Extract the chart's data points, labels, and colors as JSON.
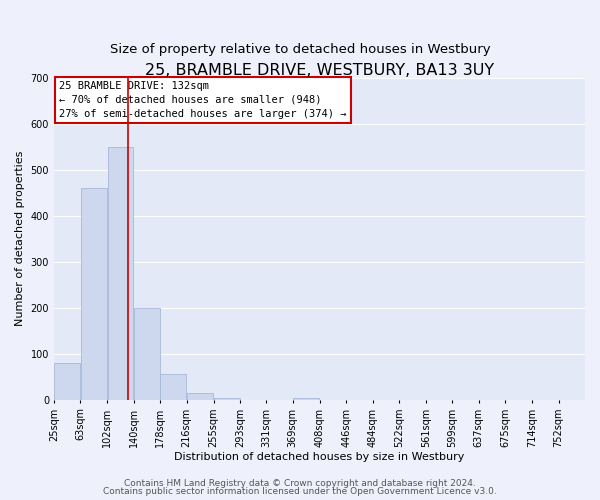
{
  "title": "25, BRAMBLE DRIVE, WESTBURY, BA13 3UY",
  "subtitle": "Size of property relative to detached houses in Westbury",
  "xlabel": "Distribution of detached houses by size in Westbury",
  "ylabel": "Number of detached properties",
  "bar_edges": [
    25,
    63,
    102,
    140,
    178,
    216,
    255,
    293,
    331,
    369,
    408,
    446,
    484,
    522,
    561,
    599,
    637,
    675,
    714,
    752,
    790
  ],
  "bar_heights": [
    80,
    460,
    550,
    200,
    57,
    15,
    3,
    0,
    0,
    5,
    0,
    0,
    0,
    0,
    0,
    0,
    0,
    0,
    0,
    0
  ],
  "bar_color": "#cdd8ee",
  "bar_edge_color": "#a8b8d8",
  "property_line_x": 132,
  "property_line_color": "#cc0000",
  "ylim": [
    0,
    700
  ],
  "yticks": [
    0,
    100,
    200,
    300,
    400,
    500,
    600,
    700
  ],
  "annotation_text_line1": "25 BRAMBLE DRIVE: 132sqm",
  "annotation_text_line2": "← 70% of detached houses are smaller (948)",
  "annotation_text_line3": "27% of semi-detached houses are larger (374) →",
  "footer_line1": "Contains HM Land Registry data © Crown copyright and database right 2024.",
  "footer_line2": "Contains public sector information licensed under the Open Government Licence v3.0.",
  "background_color": "#eef1fb",
  "plot_bg_color": "#e4e9f8",
  "grid_color": "#ffffff",
  "title_fontsize": 11.5,
  "subtitle_fontsize": 9.5,
  "axis_label_fontsize": 8,
  "tick_label_fontsize": 7,
  "footer_fontsize": 6.5,
  "ann_fontsize": 7.5
}
